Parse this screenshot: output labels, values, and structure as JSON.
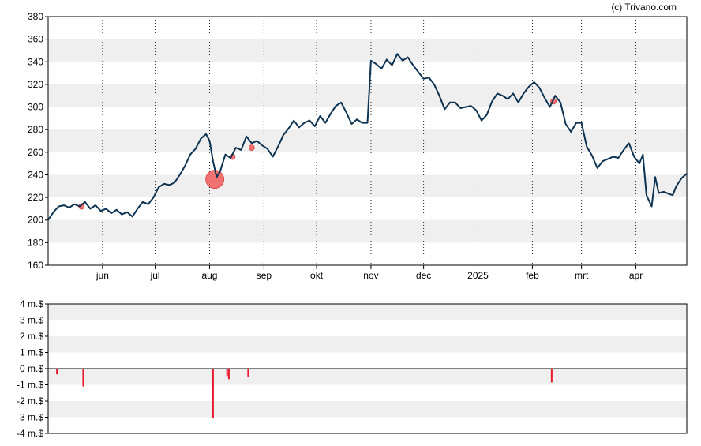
{
  "credit": "(c) Trivano.com",
  "colors": {
    "line": "#0d3352",
    "band": "#efefef",
    "marker": "#f05a5a",
    "volume_bar": "#e8192c",
    "axis": "#000000"
  },
  "chart_data": [
    {
      "type": "line",
      "grid": "vertical dotted lines at month ticks, alternating horizontal bands",
      "ylim": [
        160,
        380
      ],
      "y_ticks": [
        "160",
        "180",
        "200",
        "220",
        "240",
        "260",
        "280",
        "300",
        "320",
        "340",
        "360",
        "380"
      ],
      "x_ticks": [
        {
          "label": "jun",
          "date": "2024-06-01"
        },
        {
          "label": "jul",
          "date": "2024-07-01"
        },
        {
          "label": "aug",
          "date": "2024-08-01"
        },
        {
          "label": "sep",
          "date": "2024-09-01"
        },
        {
          "label": "okt",
          "date": "2024-10-01"
        },
        {
          "label": "nov",
          "date": "2024-11-01"
        },
        {
          "label": "dec",
          "date": "2024-12-01"
        },
        {
          "label": "2025",
          "date": "2025-01-01"
        },
        {
          "label": "feb",
          "date": "2025-02-01"
        },
        {
          "label": "mrt",
          "date": "2025-03-01"
        },
        {
          "label": "apr",
          "date": "2025-04-01"
        }
      ],
      "x_range": [
        "2024-05-01",
        "2025-04-30"
      ],
      "series": [
        {
          "points": [
            [
              "2024-05-01",
              200
            ],
            [
              "2024-05-04",
              207
            ],
            [
              "2024-05-07",
              212
            ],
            [
              "2024-05-10",
              213
            ],
            [
              "2024-05-13",
              211
            ],
            [
              "2024-05-16",
              214
            ],
            [
              "2024-05-19",
              212
            ],
            [
              "2024-05-22",
              216
            ],
            [
              "2024-05-25",
              210
            ],
            [
              "2024-05-28",
              213
            ],
            [
              "2024-05-31",
              208
            ],
            [
              "2024-06-03",
              210
            ],
            [
              "2024-06-06",
              206
            ],
            [
              "2024-06-09",
              209
            ],
            [
              "2024-06-12",
              205
            ],
            [
              "2024-06-15",
              207
            ],
            [
              "2024-06-18",
              203
            ],
            [
              "2024-06-21",
              210
            ],
            [
              "2024-06-24",
              216
            ],
            [
              "2024-06-27",
              214
            ],
            [
              "2024-06-30",
              220
            ],
            [
              "2024-07-03",
              229
            ],
            [
              "2024-07-06",
              232
            ],
            [
              "2024-07-09",
              231
            ],
            [
              "2024-07-12",
              233
            ],
            [
              "2024-07-15",
              240
            ],
            [
              "2024-07-18",
              248
            ],
            [
              "2024-07-21",
              258
            ],
            [
              "2024-07-24",
              263
            ],
            [
              "2024-07-27",
              272
            ],
            [
              "2024-07-30",
              276
            ],
            [
              "2024-08-01",
              270
            ],
            [
              "2024-08-03",
              252
            ],
            [
              "2024-08-05",
              238
            ],
            [
              "2024-08-07",
              243
            ],
            [
              "2024-08-10",
              258
            ],
            [
              "2024-08-13",
              255
            ],
            [
              "2024-08-16",
              264
            ],
            [
              "2024-08-19",
              262
            ],
            [
              "2024-08-22",
              274
            ],
            [
              "2024-08-25",
              268
            ],
            [
              "2024-08-28",
              270
            ],
            [
              "2024-08-31",
              266
            ],
            [
              "2024-09-03",
              263
            ],
            [
              "2024-09-06",
              256
            ],
            [
              "2024-09-09",
              265
            ],
            [
              "2024-09-12",
              275
            ],
            [
              "2024-09-15",
              281
            ],
            [
              "2024-09-18",
              288
            ],
            [
              "2024-09-21",
              282
            ],
            [
              "2024-09-24",
              286
            ],
            [
              "2024-09-27",
              288
            ],
            [
              "2024-09-30",
              283
            ],
            [
              "2024-10-03",
              292
            ],
            [
              "2024-10-06",
              286
            ],
            [
              "2024-10-09",
              294
            ],
            [
              "2024-10-12",
              301
            ],
            [
              "2024-10-15",
              304
            ],
            [
              "2024-10-18",
              295
            ],
            [
              "2024-10-21",
              285
            ],
            [
              "2024-10-24",
              289
            ],
            [
              "2024-10-27",
              286
            ],
            [
              "2024-10-30",
              286
            ],
            [
              "2024-11-01",
              341
            ],
            [
              "2024-11-04",
              338
            ],
            [
              "2024-11-07",
              334
            ],
            [
              "2024-11-10",
              342
            ],
            [
              "2024-11-13",
              337
            ],
            [
              "2024-11-16",
              347
            ],
            [
              "2024-11-19",
              341
            ],
            [
              "2024-11-22",
              344
            ],
            [
              "2024-11-25",
              337
            ],
            [
              "2024-11-28",
              331
            ],
            [
              "2024-12-01",
              325
            ],
            [
              "2024-12-04",
              326
            ],
            [
              "2024-12-07",
              320
            ],
            [
              "2024-12-10",
              310
            ],
            [
              "2024-12-13",
              298
            ],
            [
              "2024-12-16",
              304
            ],
            [
              "2024-12-19",
              304
            ],
            [
              "2024-12-22",
              299
            ],
            [
              "2024-12-25",
              300
            ],
            [
              "2024-12-28",
              301
            ],
            [
              "2024-12-31",
              297
            ],
            [
              "2025-01-03",
              288
            ],
            [
              "2025-01-06",
              293
            ],
            [
              "2025-01-09",
              305
            ],
            [
              "2025-01-12",
              312
            ],
            [
              "2025-01-15",
              310
            ],
            [
              "2025-01-18",
              307
            ],
            [
              "2025-01-21",
              312
            ],
            [
              "2025-01-24",
              304
            ],
            [
              "2025-01-27",
              312
            ],
            [
              "2025-01-30",
              318
            ],
            [
              "2025-02-02",
              322
            ],
            [
              "2025-02-05",
              317
            ],
            [
              "2025-02-08",
              308
            ],
            [
              "2025-02-11",
              300
            ],
            [
              "2025-02-14",
              310
            ],
            [
              "2025-02-17",
              304
            ],
            [
              "2025-02-20",
              285
            ],
            [
              "2025-02-23",
              278
            ],
            [
              "2025-02-26",
              286
            ],
            [
              "2025-03-01",
              286
            ],
            [
              "2025-03-04",
              265
            ],
            [
              "2025-03-07",
              257
            ],
            [
              "2025-03-10",
              246
            ],
            [
              "2025-03-13",
              252
            ],
            [
              "2025-03-16",
              254
            ],
            [
              "2025-03-19",
              256
            ],
            [
              "2025-03-22",
              255
            ],
            [
              "2025-03-25",
              262
            ],
            [
              "2025-03-28",
              268
            ],
            [
              "2025-03-31",
              256
            ],
            [
              "2025-04-03",
              250
            ],
            [
              "2025-04-05",
              258
            ],
            [
              "2025-04-07",
              222
            ],
            [
              "2025-04-10",
              212
            ],
            [
              "2025-04-12",
              238
            ],
            [
              "2025-04-14",
              224
            ],
            [
              "2025-04-17",
              225
            ],
            [
              "2025-04-20",
              223
            ],
            [
              "2025-04-22",
              222
            ],
            [
              "2025-04-24",
              230
            ],
            [
              "2025-04-27",
              237
            ],
            [
              "2025-04-30",
              241
            ]
          ]
        }
      ],
      "markers": [
        {
          "date": "2024-05-20",
          "value": 212,
          "size": "small"
        },
        {
          "date": "2024-08-04",
          "value": 236,
          "size": "large"
        },
        {
          "date": "2024-08-14",
          "value": 256,
          "size": "small"
        },
        {
          "date": "2024-08-25",
          "value": 264,
          "size": "small"
        },
        {
          "date": "2025-02-13",
          "value": 305,
          "size": "small"
        }
      ]
    },
    {
      "type": "bar",
      "ylim": [
        -4,
        4
      ],
      "y_ticks": [
        "-4 m.$",
        "-3 m.$",
        "-2 m.$",
        "-1 m.$",
        "0 m.$",
        "1 m.$",
        "2 m.$",
        "3 m.$",
        "4 m.$"
      ],
      "unit": "m.$",
      "bars": [
        {
          "date": "2024-05-06",
          "value": -0.35
        },
        {
          "date": "2024-05-21",
          "value": -1.1
        },
        {
          "date": "2024-08-03",
          "value": -3.05
        },
        {
          "date": "2024-08-11",
          "value": -0.45
        },
        {
          "date": "2024-08-12",
          "value": -0.65
        },
        {
          "date": "2024-08-23",
          "value": -0.5
        },
        {
          "date": "2025-02-12",
          "value": -0.85
        }
      ]
    }
  ]
}
